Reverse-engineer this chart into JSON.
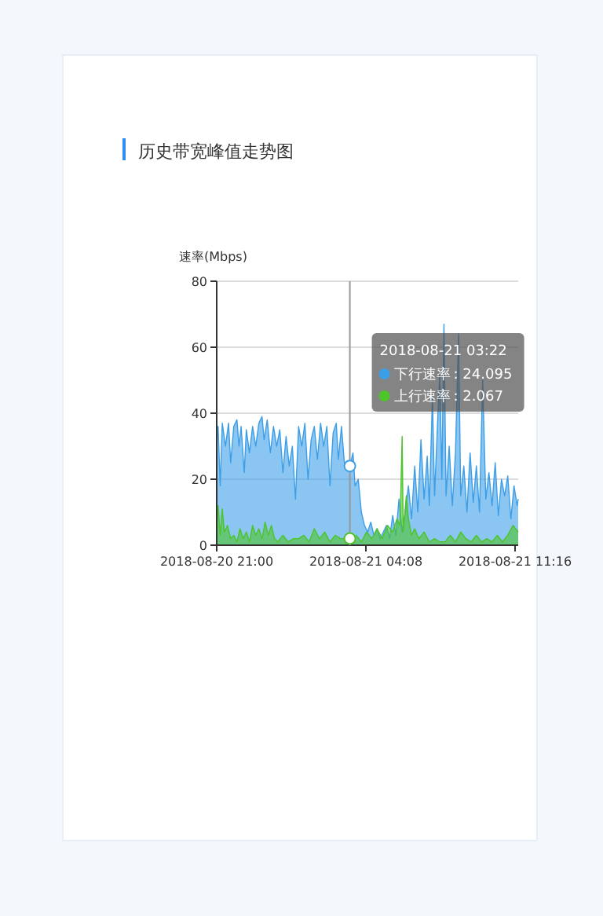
{
  "chart_data": {
    "type": "area",
    "title": "历史带宽峰值走势图",
    "ylabel": "速率(Mbps)",
    "x": [
      "2018-08-20T21:00",
      "2018-08-20T21:04",
      "2018-08-20T21:10",
      "2018-08-20T21:16",
      "2018-08-20T21:25",
      "2018-08-20T21:34",
      "2018-08-20T21:40",
      "2018-08-20T21:49",
      "2018-08-20T21:58",
      "2018-08-20T22:04",
      "2018-08-20T22:10",
      "2018-08-20T22:19",
      "2018-08-20T22:25",
      "2018-08-20T22:34",
      "2018-08-20T22:43",
      "2018-08-20T22:52",
      "2018-08-20T23:01",
      "2018-08-20T23:10",
      "2018-08-20T23:16",
      "2018-08-20T23:25",
      "2018-08-20T23:34",
      "2018-08-20T23:43",
      "2018-08-20T23:52",
      "2018-08-21T00:01",
      "2018-08-21T00:10",
      "2018-08-21T00:19",
      "2018-08-21T00:28",
      "2018-08-21T00:37",
      "2018-08-21T00:46",
      "2018-08-21T00:55",
      "2018-08-21T01:04",
      "2018-08-21T01:13",
      "2018-08-21T01:22",
      "2018-08-21T01:31",
      "2018-08-21T01:40",
      "2018-08-21T01:49",
      "2018-08-21T01:58",
      "2018-08-21T02:07",
      "2018-08-21T02:16",
      "2018-08-21T02:25",
      "2018-08-21T02:34",
      "2018-08-21T02:43",
      "2018-08-21T02:49",
      "2018-08-21T02:58",
      "2018-08-21T03:07",
      "2018-08-21T03:22",
      "2018-08-21T03:31",
      "2018-08-21T03:37",
      "2018-08-21T03:46",
      "2018-08-21T03:55",
      "2018-08-21T04:04",
      "2018-08-21T04:13",
      "2018-08-21T04:22",
      "2018-08-21T04:31",
      "2018-08-21T04:40",
      "2018-08-21T04:49",
      "2018-08-21T04:58",
      "2018-08-21T05:07",
      "2018-08-21T05:16",
      "2018-08-21T05:25",
      "2018-08-21T05:34",
      "2018-08-21T05:43",
      "2018-08-21T05:52",
      "2018-08-21T06:01",
      "2018-08-21T06:10",
      "2018-08-21T06:19",
      "2018-08-21T06:28",
      "2018-08-21T06:37",
      "2018-08-21T06:46",
      "2018-08-21T06:55",
      "2018-08-21T07:04",
      "2018-08-21T07:10",
      "2018-08-21T07:19",
      "2018-08-21T07:25",
      "2018-08-21T07:34",
      "2018-08-21T07:40",
      "2018-08-21T07:46",
      "2018-08-21T07:52",
      "2018-08-21T07:58",
      "2018-08-21T08:07",
      "2018-08-21T08:16",
      "2018-08-21T08:25",
      "2018-08-21T08:34",
      "2018-08-21T08:40",
      "2018-08-21T08:49",
      "2018-08-21T08:58",
      "2018-08-21T09:07",
      "2018-08-21T09:16",
      "2018-08-21T09:25",
      "2018-08-21T09:34",
      "2018-08-21T09:43",
      "2018-08-21T09:52",
      "2018-08-21T10:01",
      "2018-08-21T10:10",
      "2018-08-21T10:19",
      "2018-08-21T10:28",
      "2018-08-21T10:37",
      "2018-08-21T10:46",
      "2018-08-21T10:55",
      "2018-08-21T11:04",
      "2018-08-21T11:13",
      "2018-08-21T11:22",
      "2018-08-21T11:25"
    ],
    "series": [
      {
        "name": "下行速率",
        "color": "#3d9ee8",
        "values": [
          31,
          36,
          18,
          37,
          30,
          37,
          25,
          36,
          38,
          30,
          36,
          22,
          35,
          28,
          36,
          30,
          37,
          39,
          32,
          38,
          28,
          36,
          30,
          35,
          22,
          33,
          24,
          30,
          14,
          36,
          30,
          37,
          20,
          32,
          36,
          26,
          37,
          30,
          36,
          18,
          34,
          37,
          26,
          36,
          24,
          24,
          28,
          18,
          20,
          10,
          6,
          4,
          7,
          3,
          5,
          2,
          4,
          6,
          2,
          9,
          3,
          14,
          4,
          10,
          18,
          8,
          24,
          10,
          32,
          14,
          27,
          12,
          45,
          15,
          38,
          52,
          20,
          67,
          15,
          30,
          12,
          28,
          64,
          15,
          24,
          10,
          28,
          13,
          24,
          10,
          50,
          14,
          22,
          12,
          25,
          9,
          20,
          15,
          21,
          8,
          18,
          12,
          14
        ]
      },
      {
        "name": "上行速率",
        "color": "#4cc42a",
        "x": [
          "2018-08-20T21:00",
          "2018-08-20T21:04",
          "2018-08-20T21:10",
          "2018-08-20T21:16",
          "2018-08-20T21:22",
          "2018-08-20T21:31",
          "2018-08-20T21:40",
          "2018-08-20T21:49",
          "2018-08-20T21:58",
          "2018-08-20T22:07",
          "2018-08-20T22:16",
          "2018-08-20T22:25",
          "2018-08-20T22:34",
          "2018-08-20T22:43",
          "2018-08-20T22:52",
          "2018-08-20T23:01",
          "2018-08-20T23:10",
          "2018-08-20T23:19",
          "2018-08-20T23:28",
          "2018-08-20T23:37",
          "2018-08-20T23:46",
          "2018-08-20T23:55",
          "2018-08-21T00:10",
          "2018-08-21T00:25",
          "2018-08-21T00:40",
          "2018-08-21T00:55",
          "2018-08-21T01:10",
          "2018-08-21T01:25",
          "2018-08-21T01:40",
          "2018-08-21T01:55",
          "2018-08-21T02:10",
          "2018-08-21T02:25",
          "2018-08-21T02:40",
          "2018-08-21T02:55",
          "2018-08-21T03:22",
          "2018-08-21T03:25",
          "2018-08-21T03:40",
          "2018-08-21T03:55",
          "2018-08-21T04:10",
          "2018-08-21T04:25",
          "2018-08-21T04:40",
          "2018-08-21T04:55",
          "2018-08-21T05:10",
          "2018-08-21T05:25",
          "2018-08-21T05:37",
          "2018-08-21T05:46",
          "2018-08-21T05:52",
          "2018-08-21T05:55",
          "2018-08-21T06:04",
          "2018-08-21T06:10",
          "2018-08-21T06:19",
          "2018-08-21T06:28",
          "2018-08-21T06:40",
          "2018-08-21T06:55",
          "2018-08-21T07:10",
          "2018-08-21T07:25",
          "2018-08-21T07:40",
          "2018-08-21T07:55",
          "2018-08-21T08:10",
          "2018-08-21T08:25",
          "2018-08-21T08:40",
          "2018-08-21T08:55",
          "2018-08-21T09:10",
          "2018-08-21T09:25",
          "2018-08-21T09:40",
          "2018-08-21T09:55",
          "2018-08-21T10:10",
          "2018-08-21T10:25",
          "2018-08-21T10:40",
          "2018-08-21T10:55",
          "2018-08-21T11:10",
          "2018-08-21T11:25"
        ],
        "values": [
          6,
          12,
          3,
          11,
          4,
          6,
          2,
          3,
          1,
          5,
          2,
          4,
          1,
          6,
          3,
          5,
          2,
          7,
          3,
          6,
          2,
          1,
          3,
          1,
          2,
          2,
          3,
          1,
          5,
          2,
          4,
          1,
          3,
          2,
          2,
          1,
          3,
          1,
          4,
          2,
          5,
          2,
          6,
          4,
          8,
          6,
          33,
          4,
          15,
          8,
          3,
          5,
          2,
          4,
          1,
          2,
          1,
          1,
          3,
          1,
          4,
          2,
          1,
          3,
          1,
          2,
          1,
          3,
          1,
          3,
          6,
          4
        ]
      }
    ],
    "xlim": [
      "2018-08-20T21:00",
      "2018-08-21T11:25"
    ],
    "xticks": [
      {
        "value": "2018-08-20T21:00",
        "label": "2018-08-20 21:00"
      },
      {
        "value": "2018-08-21T04:08",
        "label": "2018-08-21 04:08"
      },
      {
        "value": "2018-08-21T11:16",
        "label": "2018-08-21 11:16"
      }
    ],
    "ylim": [
      0,
      80
    ],
    "yticks": [
      0,
      20,
      40,
      60,
      80
    ],
    "grid": "y",
    "marker": "none",
    "ref_lines": [
      {
        "axis": "x",
        "value": "2018-08-21T03:22",
        "color": "#999999"
      }
    ],
    "legend": "top right",
    "annotations": [
      "2018-08-21 03:22",
      ": 24.095",
      ": 2.067"
    ]
  }
}
